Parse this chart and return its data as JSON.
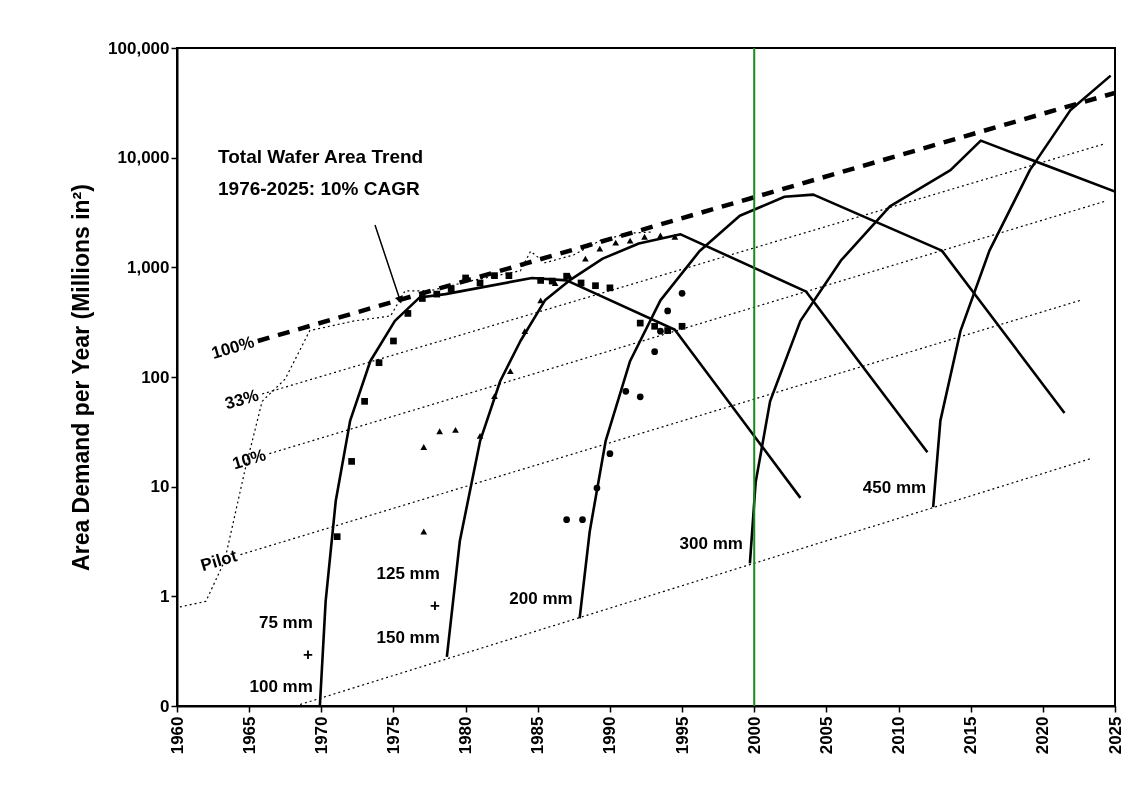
{
  "chart_data": {
    "type": "line",
    "ylabel": "Area Demand per Year (Millions in²)",
    "xlim": [
      1960,
      2025
    ],
    "xticks": [
      1960,
      1965,
      1970,
      1975,
      1980,
      1985,
      1990,
      1995,
      2000,
      2005,
      2010,
      2015,
      2020,
      2025
    ],
    "ylim": [
      0.1,
      100000
    ],
    "yticks": [
      {
        "value": 0.1,
        "label": "0"
      },
      1,
      10,
      100,
      {
        "value": 1000,
        "label": "1,000"
      },
      {
        "value": 10000,
        "label": "10,000"
      },
      {
        "value": 100000,
        "label": "100,000"
      }
    ],
    "log": "y",
    "grid": false,
    "series": [
      {
        "name": "100%",
        "color": "#000000",
        "line_style": "dashed",
        "x": [
          1965.6,
          2025
        ],
        "values": [
          213,
          39000
        ]
      },
      {
        "color": "#000000",
        "line_style": "dotted",
        "x": [
          1960.2,
          1962,
          1963.3,
          1964.7,
          1965.9,
          1967.5,
          1969.2,
          1972.3,
          1974.8,
          1975.8,
          1977.5,
          1980.3,
          1983.8,
          1984.5,
          1985.5,
          1987.5,
          1989.3,
          1991.4,
          1993
        ],
        "values": [
          0.8,
          0.9,
          2.1,
          14,
          60,
          96,
          265,
          325,
          360,
          610,
          610,
          750,
          930,
          1400,
          1100,
          1300,
          1750,
          2050,
          2100
        ]
      },
      {
        "name": "33%",
        "color": "#000000",
        "line_style": "dotted",
        "x": [
          1965.9,
          2024.3
        ],
        "values": [
          70,
          13400
        ]
      },
      {
        "name": "10%",
        "color": "#000000",
        "line_style": "dotted",
        "x": [
          1966.4,
          2024.3
        ],
        "values": [
          20,
          4000
        ]
      },
      {
        "name": "Pilot",
        "color": "#000000",
        "line_style": "dotted",
        "x": [
          1964.4,
          2022.6
        ],
        "values": [
          2.4,
          500
        ]
      },
      {
        "color": "#000000",
        "line_style": "dotted",
        "x": [
          1968.2,
          2023.3
        ],
        "values": [
          0.1,
          18
        ]
      },
      {
        "name": "75 mm\n+\n100 mm",
        "color": "#000000",
        "line_style": "solid",
        "x": [
          1969.9,
          1970.3,
          1971,
          1972,
          1973.4,
          1975.1,
          1976.8,
          1978.6,
          1984.6,
          1987,
          1994.5,
          2003.2
        ],
        "values": [
          0.1,
          0.9,
          7.4,
          40,
          140,
          325,
          530,
          570,
          800,
          760,
          270,
          7.9
        ]
      },
      {
        "name": "125 mm\n+\n150 mm",
        "color": "#000000",
        "line_style": "solid",
        "x": [
          1978.7,
          1979.6,
          1981,
          1982.4,
          1983.8,
          1985.5,
          1987.2,
          1989.5,
          1992,
          1994.9,
          2003.6,
          2012
        ],
        "values": [
          0.28,
          3.2,
          26,
          92,
          213,
          500,
          760,
          1200,
          1650,
          2000,
          600,
          20.6
        ]
      },
      {
        "name": "200 mm",
        "color": "#000000",
        "line_style": "solid",
        "x": [
          1987.9,
          1988.6,
          1989.7,
          1991.4,
          1993.5,
          1996.2,
          1999,
          2002.1,
          2004.1,
          2013,
          2021.5
        ],
        "values": [
          0.63,
          3.9,
          26,
          140,
          500,
          1400,
          2950,
          4400,
          4600,
          1420,
          47
        ]
      },
      {
        "name": "300 mm",
        "color": "#000000",
        "line_style": "solid",
        "x": [
          1999.7,
          2000.1,
          2001.1,
          2003.2,
          2006,
          2009.4,
          2013.6,
          2015.7,
          2025
        ],
        "values": [
          2.0,
          11,
          60,
          325,
          1150,
          3600,
          7700,
          14300,
          4900
        ]
      },
      {
        "name": "450 mm",
        "color": "#000000",
        "line_style": "solid",
        "x": [
          2012.4,
          2012.9,
          2014.3,
          2016.3,
          2019.1,
          2021.9,
          2024.7
        ],
        "values": [
          6.5,
          40,
          265,
          1420,
          7700,
          27000,
          56000
        ]
      },
      {
        "type": "scatter",
        "marker": "square",
        "color": "#000000",
        "x": [
          1971.1,
          1972.1,
          1973,
          1974,
          1975,
          1976,
          1977,
          1978,
          1979,
          1980,
          1981,
          1982,
          1983,
          1985.2,
          1986,
          1987,
          1988,
          1989,
          1990,
          1992.1,
          1993.1,
          1994,
          1995
        ],
        "values": [
          3.5,
          17,
          60,
          135,
          213,
          380,
          520,
          570,
          640,
          800,
          720,
          840,
          840,
          760,
          750,
          830,
          720,
          680,
          650,
          310,
          290,
          265,
          290
        ]
      },
      {
        "type": "scatter",
        "marker": "triangle",
        "color": "#000000",
        "x": [
          1977.1,
          1977.1,
          1978.2,
          1979.3,
          1981,
          1982,
          1983.1,
          1984.1,
          1985.2,
          1986.2,
          1987.2,
          1988.3,
          1989.3,
          1990.4,
          1991.4,
          1992.4,
          1993.5,
          1994.5
        ],
        "values": [
          3.9,
          23,
          32,
          33,
          29,
          67,
          113,
          262,
          500,
          720,
          830,
          1200,
          1480,
          1680,
          1750,
          1900,
          1950,
          1900
        ]
      },
      {
        "type": "scatter",
        "marker": "circle",
        "color": "#000000",
        "x": [
          1987,
          1988.1,
          1989.1,
          1990,
          1991.1,
          1992.1,
          1993.1,
          1993.5,
          1994,
          1995
        ],
        "values": [
          5.0,
          5.0,
          9.7,
          20,
          74,
          66,
          170,
          262,
          400,
          580
        ]
      }
    ],
    "ref_lines": [
      {
        "axis": "x",
        "value": 2000,
        "color": "#1a8a1a"
      }
    ],
    "annotations": [
      "Total Wafer Area Trend\n1976-2025:  10% CAGR"
    ]
  }
}
